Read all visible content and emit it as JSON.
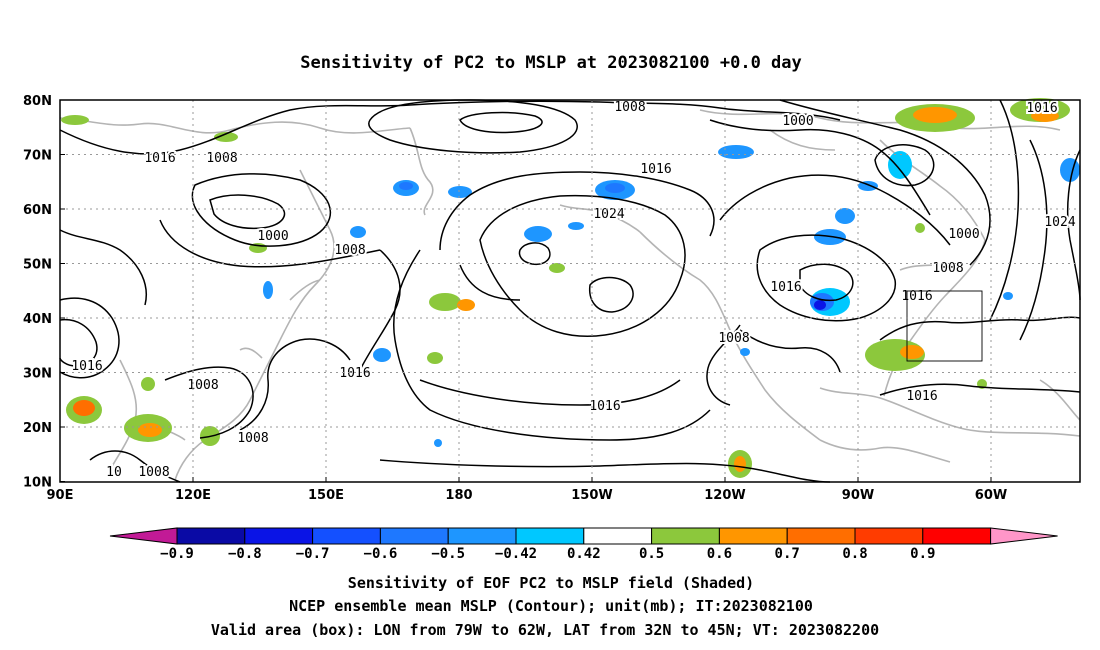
{
  "title": "Sensitivity of PC2 to MSLP at 2023082100 +0.0 day",
  "map": {
    "lon_ticks": [
      "90E",
      "120E",
      "150E",
      "180",
      "150W",
      "120W",
      "90W",
      "60W"
    ],
    "lat_ticks": [
      "80N",
      "70N",
      "60N",
      "50N",
      "40N",
      "30N",
      "20N",
      "10N"
    ],
    "valid_box": {
      "lon_from": "79W",
      "lon_to": "62W",
      "lat_from": "32N",
      "lat_to": "45N"
    },
    "grid": "dotted"
  },
  "contour_labels": [
    {
      "text": "1008"
    },
    {
      "text": "1016"
    },
    {
      "text": "1008"
    },
    {
      "text": "1000"
    },
    {
      "text": "1008"
    },
    {
      "text": "1016"
    },
    {
      "text": "1024"
    },
    {
      "text": "1000"
    },
    {
      "text": "1016"
    },
    {
      "text": "1024"
    },
    {
      "text": "1000"
    },
    {
      "text": "1008"
    },
    {
      "text": "1016"
    },
    {
      "text": "1016"
    },
    {
      "text": "1008"
    },
    {
      "text": "1016"
    },
    {
      "text": "1008"
    },
    {
      "text": "1008"
    },
    {
      "text": "1016"
    },
    {
      "text": "1016"
    },
    {
      "text": "1016"
    },
    {
      "text": "10"
    },
    {
      "text": "1008"
    }
  ],
  "colorbar": {
    "labels": [
      "−0.9",
      "−0.8",
      "−0.7",
      "−0.6",
      "−0.5",
      "−0.42",
      "0.42",
      "0.5",
      "0.6",
      "0.7",
      "0.8",
      "0.9"
    ],
    "colors": [
      "#c21a96",
      "#0a0aa5",
      "#0a14e6",
      "#1450ff",
      "#1e78ff",
      "#1e96ff",
      "#00c8ff",
      "#ffffff",
      "#8cc83c",
      "#ff9600",
      "#ff6e00",
      "#ff3c00",
      "#ff0000",
      "#ff96c8"
    ]
  },
  "shade_colors": {
    "pos_weak": "#8cc83c",
    "pos_mid": "#ff9600",
    "pos_strong": "#ff6e00",
    "neg_weak": "#00c8ff",
    "neg_mid": "#1e78ff",
    "neg_strong": "#0a14e6"
  },
  "caption": {
    "line1": "Sensitivity of EOF PC2 to MSLP field (Shaded)",
    "line2": "NCEP ensemble mean MSLP (Contour); unit(mb); IT:2023082100",
    "line3": "Valid area (box): LON from 79W to 62W, LAT from 32N to 45N; VT: 2023082200"
  }
}
